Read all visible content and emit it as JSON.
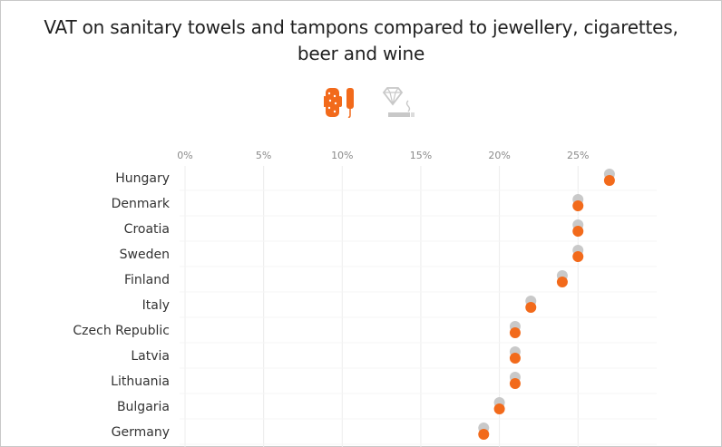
{
  "title": "VAT on sanitary towels and tampons compared to jewellery, cigarettes, beer and wine",
  "legend": [
    {
      "icon": "sanitary-products-icon",
      "color": "#f26a1b"
    },
    {
      "icon": "jewellery-cigarettes-icon",
      "color": "#c8c8c8"
    }
  ],
  "colors": {
    "sanitary": "#f26a1b",
    "luxury": "#c9c9c9",
    "grid": "#ececec",
    "tick": "#8a8a8a",
    "label": "#333333"
  },
  "chart_data": {
    "type": "scatter",
    "title": "VAT on sanitary towels and tampons compared to jewellery, cigarettes, beer and wine",
    "xlim": [
      0,
      30
    ],
    "ticks": [
      "0%",
      "5%",
      "10%",
      "15%",
      "20%",
      "25%"
    ],
    "tick_values": [
      0,
      5,
      10,
      15,
      20,
      25
    ],
    "categories": [
      "Hungary",
      "Denmark",
      "Croatia",
      "Sweden",
      "Finland",
      "Italy",
      "Czech Republic",
      "Latvia",
      "Lithuania",
      "Bulgaria",
      "Germany"
    ],
    "series": [
      {
        "key": "luxury",
        "values": [
          27,
          25,
          25,
          25,
          24,
          22,
          21,
          21,
          21,
          20,
          19
        ]
      },
      {
        "key": "sanitary",
        "values": [
          27,
          25,
          25,
          25,
          24,
          22,
          21,
          21,
          21,
          20,
          19
        ]
      }
    ]
  }
}
